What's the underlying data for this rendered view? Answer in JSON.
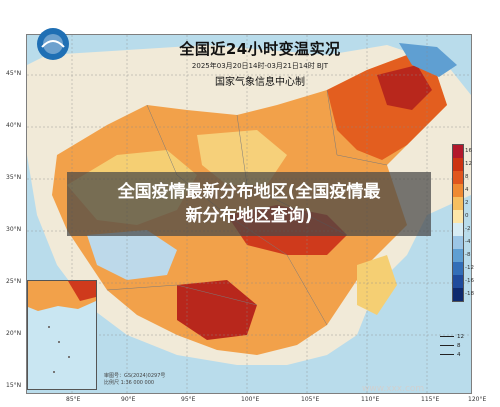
{
  "banner": {
    "line1": "全国疫情最新分布地区(全国疫情最",
    "line2": "新分布地区查询)"
  },
  "map": {
    "title": "全国近24小时变温实况",
    "subtitle": "2025年03月20日14时-03月21日14时 BJT",
    "organization": "国家气象信息中心制",
    "latitudes": [
      "45°N",
      "40°N",
      "35°N",
      "30°N",
      "25°N",
      "20°N",
      "15°N"
    ],
    "longitudes": [
      "85°E",
      "90°E",
      "95°E",
      "100°E",
      "105°E",
      "110°E",
      "115°E",
      "120°E"
    ],
    "legend": {
      "values": [
        "16",
        "12",
        "8",
        "4",
        "2",
        "0",
        "-2",
        "-4",
        "-8",
        "-12",
        "-16",
        "-18"
      ],
      "colors": [
        "#b2182b",
        "#cc3311",
        "#e0561e",
        "#ef8a32",
        "#f6bf60",
        "#fde6a8",
        "#d7ecf4",
        "#9cc6e6",
        "#5f9fd2",
        "#336fb8",
        "#1f4b9c",
        "#0e2a6e"
      ]
    },
    "wind_legend": [
      "12",
      "8",
      "4"
    ],
    "scale_note": "审图号：GS(2024)0297号",
    "scale_sub": "比例尺 1:36 000 000"
  },
  "watermark": "www.xxx.com"
}
